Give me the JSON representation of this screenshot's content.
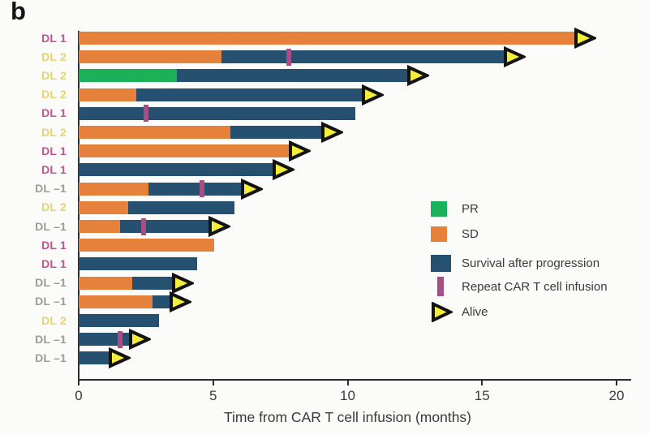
{
  "panel_label": "b",
  "palette": {
    "pr": "#1ab159",
    "sd": "#e6813c",
    "sap": "#25506f",
    "repeat": "#a84e85",
    "alive_fill": "#f3ee3b",
    "alive_stroke": "#131313",
    "axis": "#2d2d2d",
    "text": "#3a3a3a",
    "label_dl1": "#c4548c",
    "label_dl2": "#e4d36f",
    "label_dlm1": "#9c9c9c"
  },
  "legend": {
    "items": [
      {
        "key": "pr",
        "label": "PR"
      },
      {
        "key": "sd",
        "label": "SD"
      },
      {
        "key": "sap",
        "label": "Survival after progression"
      },
      {
        "key": "repeat",
        "label": "Repeat CAR T cell infusion"
      },
      {
        "key": "alive",
        "label": "Alive"
      }
    ]
  },
  "chart_data": {
    "type": "bar",
    "orientation": "horizontal",
    "title": "",
    "xlabel": "Time from CAR T cell infusion (months)",
    "ylabel": "",
    "xlim": [
      0,
      20
    ],
    "x_ticks": [
      0,
      5,
      10,
      15,
      20
    ],
    "grid": false,
    "legend_position": "center-right",
    "rows": [
      {
        "label": "DL 1",
        "label_color": "dl1",
        "segments": [
          {
            "type": "sd",
            "start": 0,
            "end": 18.6
          }
        ],
        "repeat_infusion": null,
        "alive": true
      },
      {
        "label": "DL 2",
        "label_color": "dl2",
        "segments": [
          {
            "type": "sd",
            "start": 0,
            "end": 5.3
          },
          {
            "type": "sap",
            "start": 5.3,
            "end": 16.0
          }
        ],
        "repeat_infusion": 7.8,
        "alive": true
      },
      {
        "label": "DL 2",
        "label_color": "dl2",
        "segments": [
          {
            "type": "pr",
            "start": 0,
            "end": 3.65
          },
          {
            "type": "sap",
            "start": 3.65,
            "end": 12.4
          }
        ],
        "repeat_infusion": null,
        "alive": true
      },
      {
        "label": "DL 2",
        "label_color": "dl2",
        "segments": [
          {
            "type": "sd",
            "start": 0,
            "end": 2.15
          },
          {
            "type": "sap",
            "start": 2.15,
            "end": 10.7
          }
        ],
        "repeat_infusion": null,
        "alive": true
      },
      {
        "label": "DL 1",
        "label_color": "dl1",
        "segments": [
          {
            "type": "sap",
            "start": 0,
            "end": 10.3
          }
        ],
        "repeat_infusion": 2.5,
        "alive": false
      },
      {
        "label": "DL 2",
        "label_color": "dl2",
        "segments": [
          {
            "type": "sd",
            "start": 0,
            "end": 5.65
          },
          {
            "type": "sap",
            "start": 5.65,
            "end": 9.2
          }
        ],
        "repeat_infusion": null,
        "alive": true
      },
      {
        "label": "DL 1",
        "label_color": "dl1",
        "segments": [
          {
            "type": "sd",
            "start": 0,
            "end": 8.0
          }
        ],
        "repeat_infusion": null,
        "alive": true
      },
      {
        "label": "DL 1",
        "label_color": "dl1",
        "segments": [
          {
            "type": "sap",
            "start": 0,
            "end": 7.4
          }
        ],
        "repeat_infusion": null,
        "alive": true
      },
      {
        "label": "DL –1",
        "label_color": "dlm1",
        "segments": [
          {
            "type": "sd",
            "start": 0,
            "end": 2.6
          },
          {
            "type": "sap",
            "start": 2.6,
            "end": 6.2
          }
        ],
        "repeat_infusion": 4.6,
        "alive": true
      },
      {
        "label": "DL 2",
        "label_color": "dl2",
        "segments": [
          {
            "type": "sd",
            "start": 0,
            "end": 1.85
          },
          {
            "type": "sap",
            "start": 1.85,
            "end": 5.8
          }
        ],
        "repeat_infusion": null,
        "alive": false
      },
      {
        "label": "DL –1",
        "label_color": "dlm1",
        "segments": [
          {
            "type": "sd",
            "start": 0,
            "end": 1.55
          },
          {
            "type": "sap",
            "start": 1.55,
            "end": 5.0
          }
        ],
        "repeat_infusion": 2.4,
        "alive": true
      },
      {
        "label": "DL 1",
        "label_color": "dl1",
        "segments": [
          {
            "type": "sd",
            "start": 0,
            "end": 5.05
          }
        ],
        "repeat_infusion": null,
        "alive": false
      },
      {
        "label": "DL 1",
        "label_color": "dl1",
        "segments": [
          {
            "type": "sap",
            "start": 0,
            "end": 4.4
          }
        ],
        "repeat_infusion": null,
        "alive": false
      },
      {
        "label": "DL –1",
        "label_color": "dlm1",
        "segments": [
          {
            "type": "sd",
            "start": 0,
            "end": 2.0
          },
          {
            "type": "sap",
            "start": 2.0,
            "end": 3.65
          }
        ],
        "repeat_infusion": null,
        "alive": true
      },
      {
        "label": "DL –1",
        "label_color": "dlm1",
        "segments": [
          {
            "type": "sd",
            "start": 0,
            "end": 2.75
          },
          {
            "type": "sap",
            "start": 2.75,
            "end": 3.55
          }
        ],
        "repeat_infusion": null,
        "alive": true
      },
      {
        "label": "DL 2",
        "label_color": "dl2",
        "segments": [
          {
            "type": "sap",
            "start": 0,
            "end": 3.0
          }
        ],
        "repeat_infusion": null,
        "alive": false
      },
      {
        "label": "DL –1",
        "label_color": "dlm1",
        "segments": [
          {
            "type": "sap",
            "start": 0,
            "end": 2.05
          }
        ],
        "repeat_infusion": 1.55,
        "alive": true
      },
      {
        "label": "DL –1",
        "label_color": "dlm1",
        "segments": [
          {
            "type": "sap",
            "start": 0,
            "end": 1.3
          }
        ],
        "repeat_infusion": null,
        "alive": true
      }
    ]
  }
}
